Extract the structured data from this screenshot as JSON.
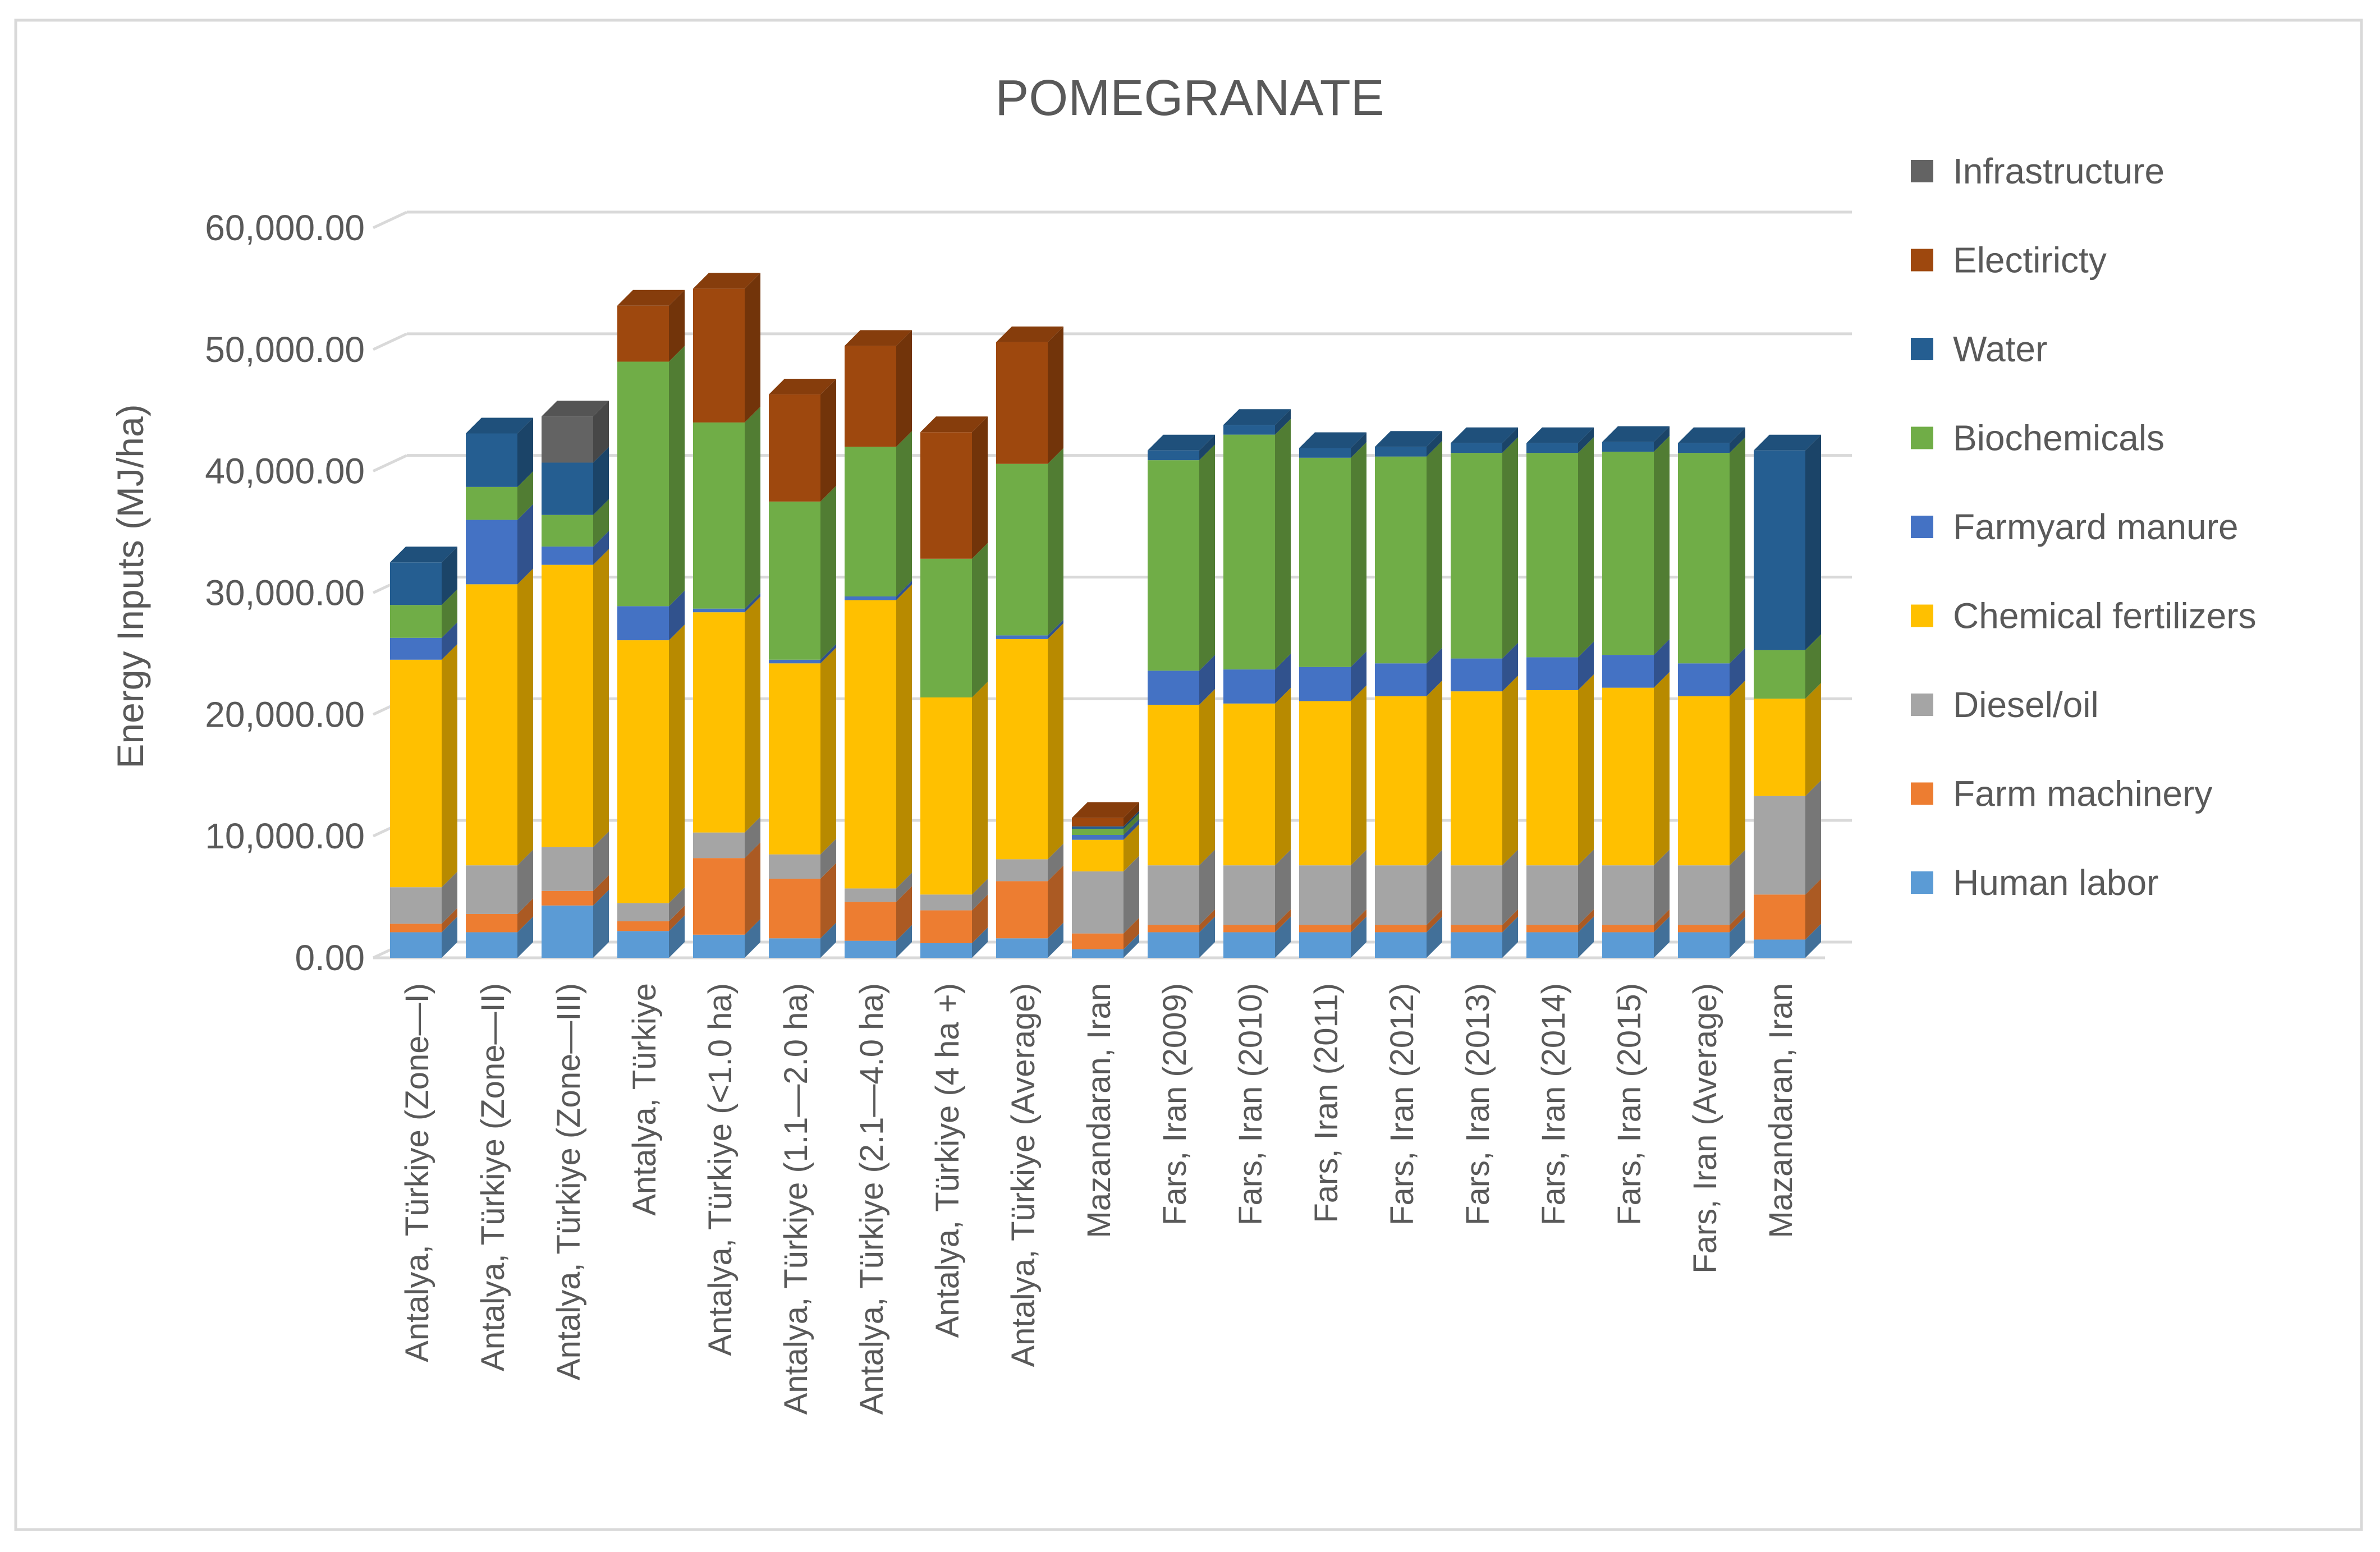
{
  "chart_data": {
    "type": "bar",
    "stacked": true,
    "title": "POMEGRANATE",
    "ylabel": "Energy Inputs (MJ/ha)",
    "xlabel": "",
    "ylim": [
      0,
      60000
    ],
    "yticks": [
      "0.00",
      "10,000.00",
      "20,000.00",
      "30,000.00",
      "40,000.00",
      "50,000.00",
      "60,000.00"
    ],
    "ytick_values": [
      0,
      10000,
      20000,
      30000,
      40000,
      50000,
      60000
    ],
    "grid": true,
    "legend_position": "right",
    "categories": [
      "Antalya, Türkiye (Zone—I)",
      "Antalya, Türkiye (Zone—II)",
      "Antalya, Türkiye (Zone—III)",
      "Antalya, Türkiye",
      "Antalya, Türkiye (<1.0 ha)",
      "Antalya, Türkiye (1.1—2.0 ha)",
      "Antalya, Türkiye (2.1—4.0 ha)",
      "Antalya, Türkiye (4 ha +)",
      "Antalya, Türkiye (Average)",
      "Mazandaran, Iran",
      "Fars, Iran (2009)",
      "Fars, Iran (2010)",
      "Fars, Iran (2011)",
      "Fars, Iran (2012)",
      "Fars, Iran (2013)",
      "Fars, Iran (2014)",
      "Fars, Iran (2015)",
      "Fars, Iran (Average)",
      "Mazandaran, Iran"
    ],
    "series": [
      {
        "name": "Human labor",
        "color": "#5B9BD5",
        "values": [
          2100,
          2100,
          4300,
          2200,
          1900,
          1600,
          1400,
          1200,
          1600,
          700,
          2100,
          2100,
          2100,
          2100,
          2100,
          2100,
          2100,
          2100,
          1500
        ]
      },
      {
        "name": "Farm machinery",
        "color": "#ED7D31",
        "values": [
          700,
          1500,
          1200,
          800,
          6300,
          4900,
          3200,
          2700,
          4700,
          1300,
          600,
          600,
          600,
          600,
          600,
          600,
          600,
          600,
          3700
        ]
      },
      {
        "name": "Diesel/oil",
        "color": "#A5A5A5",
        "values": [
          3000,
          4000,
          3600,
          1500,
          2100,
          2000,
          1100,
          1300,
          1800,
          5100,
          4900,
          4900,
          4900,
          4900,
          4900,
          4900,
          4900,
          4900,
          8100
        ]
      },
      {
        "name": "Chemical fertilizers",
        "color": "#FFC000",
        "values": [
          18700,
          23100,
          23200,
          21600,
          18100,
          15700,
          23700,
          16200,
          18100,
          2600,
          13200,
          13300,
          13500,
          13900,
          14300,
          14400,
          14600,
          13900,
          8000
        ]
      },
      {
        "name": "Farmyard manure",
        "color": "#4472C4",
        "values": [
          1800,
          5300,
          1500,
          2800,
          300,
          300,
          300,
          0,
          300,
          400,
          2800,
          2800,
          2800,
          2700,
          2700,
          2700,
          2700,
          2700,
          0
        ]
      },
      {
        "name": "Biochemicals",
        "color": "#70AD47",
        "values": [
          2700,
          2700,
          2600,
          20100,
          15300,
          13000,
          12300,
          11400,
          14100,
          500,
          17300,
          19300,
          17200,
          17000,
          16900,
          16800,
          16700,
          17300,
          4000
        ]
      },
      {
        "name": "Water",
        "color": "#255E91",
        "values": [
          3500,
          4400,
          4300,
          0,
          0,
          0,
          0,
          0,
          0,
          200,
          800,
          800,
          800,
          800,
          800,
          800,
          800,
          800,
          16400
        ]
      },
      {
        "name": "Electiricty",
        "color": "#9E480E",
        "values": [
          0,
          0,
          0,
          4600,
          11000,
          8800,
          8300,
          10400,
          10000,
          700,
          0,
          0,
          0,
          0,
          0,
          0,
          0,
          0,
          0
        ]
      },
      {
        "name": "Infrastructure",
        "color": "#636363",
        "values": [
          0,
          0,
          3800,
          0,
          0,
          0,
          0,
          0,
          0,
          0,
          0,
          0,
          0,
          0,
          0,
          0,
          0,
          0,
          0
        ]
      }
    ]
  }
}
